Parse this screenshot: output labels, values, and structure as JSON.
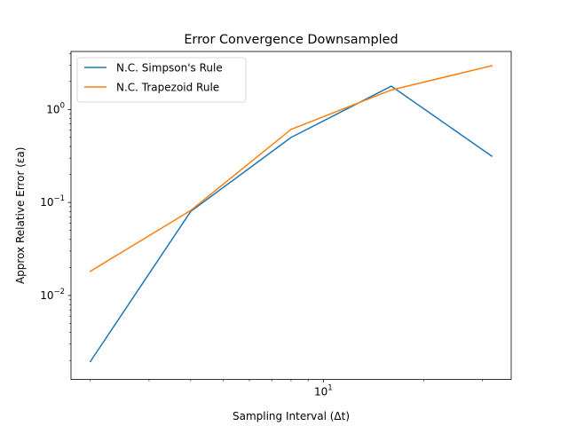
{
  "chart_data": {
    "type": "line",
    "title": "Error Convergence Downsampled",
    "xlabel": "Sampling Interval (Δt)",
    "ylabel": "Approx Relative Error (εa)",
    "xscale": "log",
    "yscale": "log",
    "xlim": [
      1.75,
      36.6
    ],
    "ylim": [
      0.00125,
      4.2
    ],
    "x_ticks": [
      {
        "value": 10,
        "base": "10",
        "exp": "1"
      }
    ],
    "x_minor_ticks": [
      2,
      3,
      4,
      5,
      6,
      7,
      8,
      9,
      20,
      30
    ],
    "y_ticks": [
      {
        "value": 0.01,
        "base": "10",
        "exp": "−2"
      },
      {
        "value": 0.1,
        "base": "10",
        "exp": "−1"
      },
      {
        "value": 1,
        "base": "10",
        "exp": "0"
      }
    ],
    "legend_position": "upper-left",
    "grid": false,
    "series": [
      {
        "name": "N.C. Simpson's Rule",
        "color": "#1f77b4",
        "x": [
          2,
          4,
          8,
          16,
          32
        ],
        "y": [
          0.00195,
          0.08,
          0.5,
          1.78,
          0.315
        ]
      },
      {
        "name": "N.C. Trapezoid Rule",
        "color": "#ff7f0e",
        "x": [
          2,
          4,
          8,
          16,
          32
        ],
        "y": [
          0.0182,
          0.082,
          0.61,
          1.62,
          2.95
        ]
      }
    ]
  }
}
